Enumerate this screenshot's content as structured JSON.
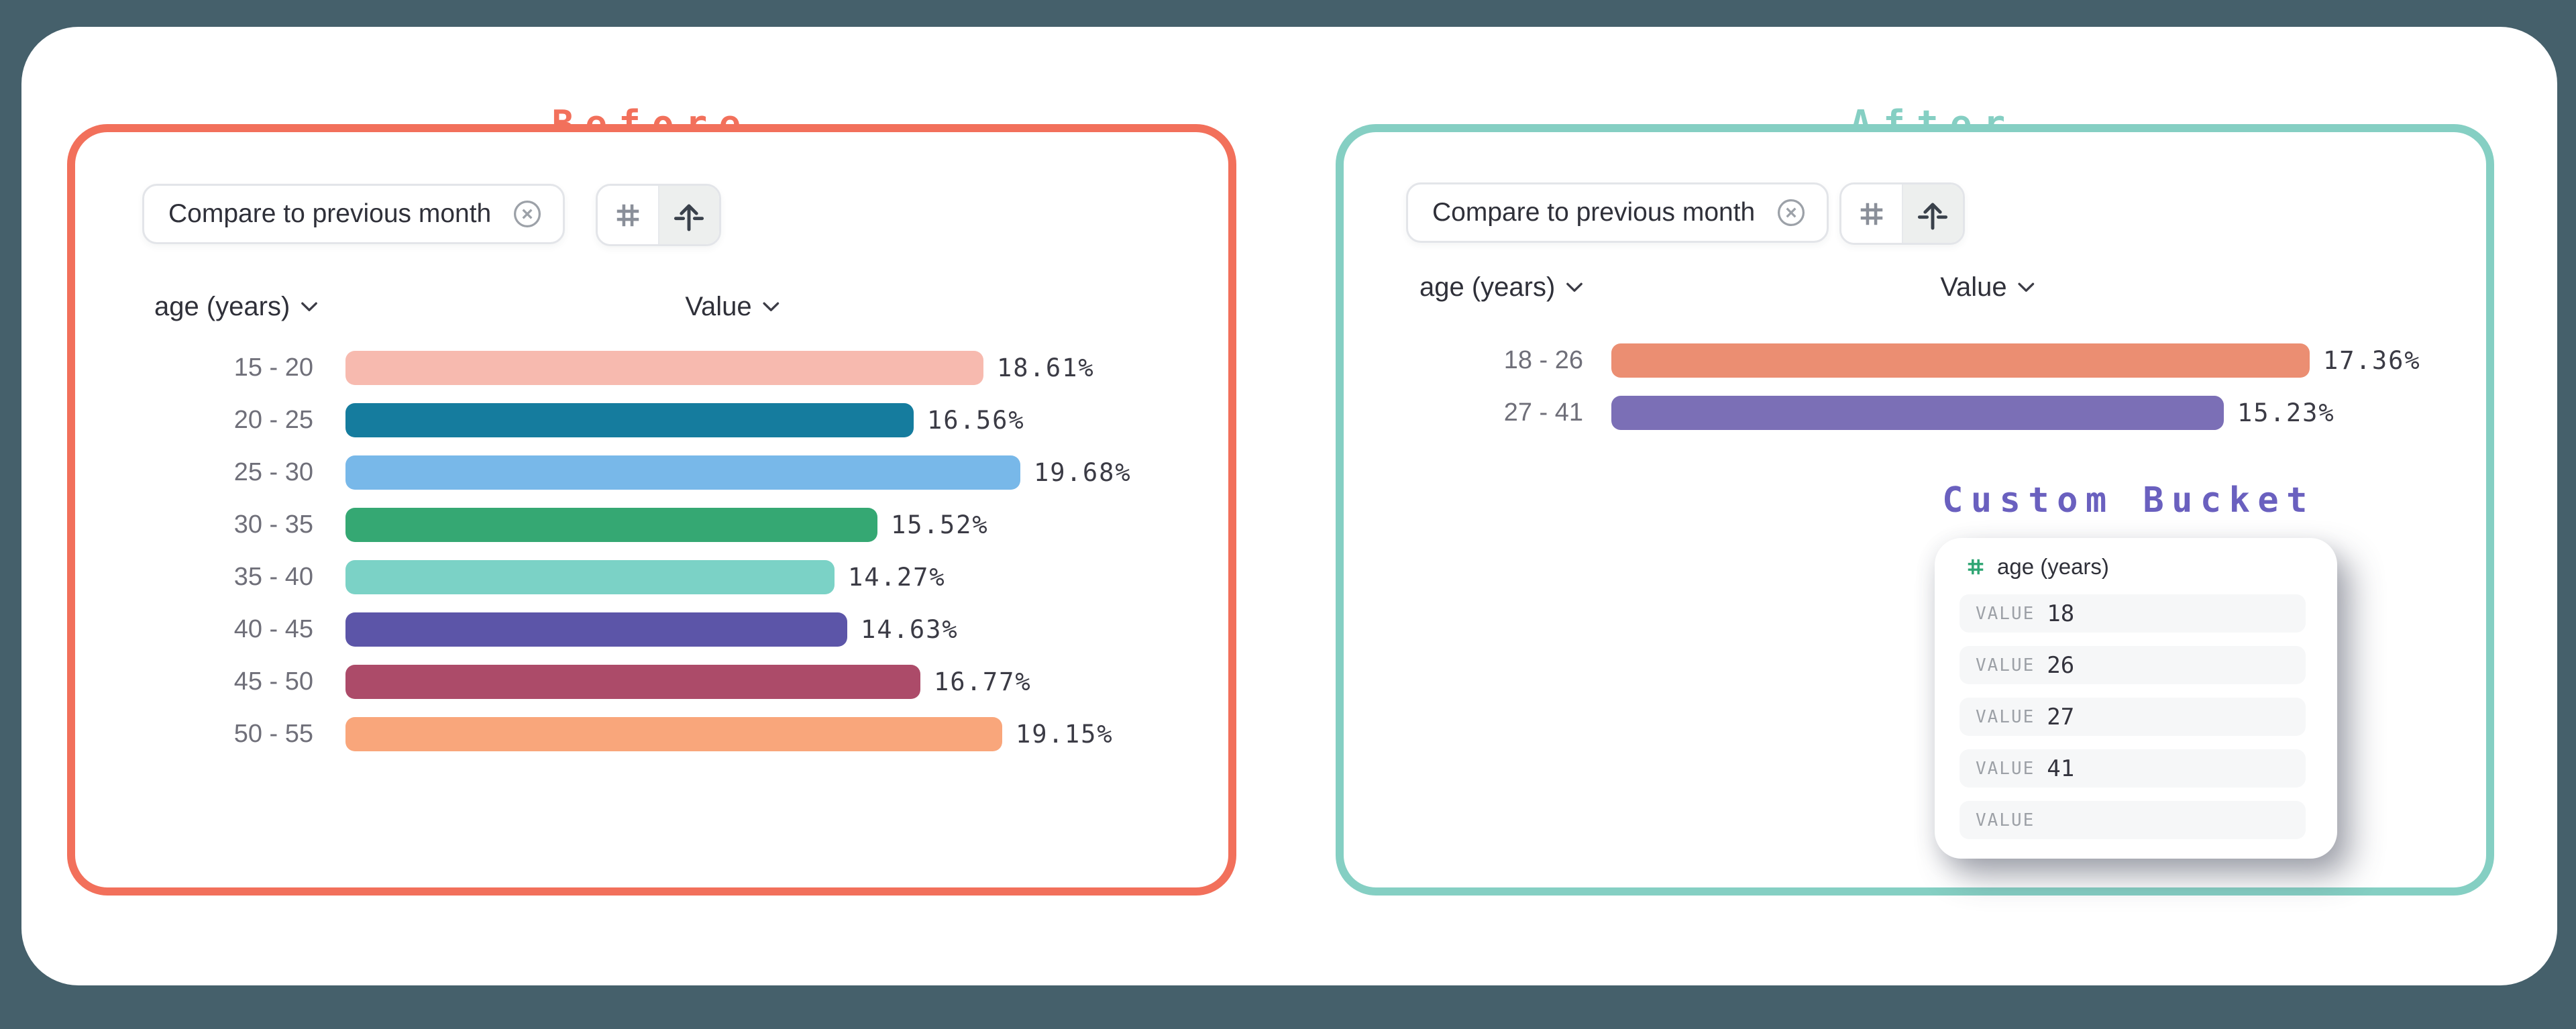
{
  "canvas": {
    "background": "#45606B"
  },
  "before": {
    "title": "Before",
    "accent": "#F2705B",
    "chip": {
      "label": "Compare to previous month",
      "close_icon": "x-circle"
    },
    "toolbar": {
      "buttons": [
        "hash",
        "axis-arrow"
      ],
      "active_button": "axis-arrow"
    },
    "columns": {
      "category": "age (years)",
      "value": "Value"
    },
    "rows": [
      {
        "label": "15 - 20",
        "value": 18.61,
        "value_label": "18.61%",
        "color": "#F7BAAF"
      },
      {
        "label": "20 - 25",
        "value": 16.56,
        "value_label": "16.56%",
        "color": "#157C9E"
      },
      {
        "label": "25 - 30",
        "value": 19.68,
        "value_label": "19.68%",
        "color": "#78B8E9"
      },
      {
        "label": "30 - 35",
        "value": 15.52,
        "value_label": "15.52%",
        "color": "#35A873"
      },
      {
        "label": "35 - 40",
        "value": 14.27,
        "value_label": "14.27%",
        "color": "#7BD2C6"
      },
      {
        "label": "40 - 45",
        "value": 14.63,
        "value_label": "14.63%",
        "color": "#5C55A8"
      },
      {
        "label": "45 - 50",
        "value": 16.77,
        "value_label": "16.77%",
        "color": "#AC4B69"
      },
      {
        "label": "50 - 55",
        "value": 19.15,
        "value_label": "19.15%",
        "color": "#F9A67B"
      }
    ]
  },
  "after": {
    "title": "After",
    "accent": "#85CFC3",
    "chip": {
      "label": "Compare to previous month",
      "close_icon": "x-circle"
    },
    "toolbar": {
      "buttons": [
        "hash",
        "axis-arrow"
      ],
      "active_button": "axis-arrow"
    },
    "columns": {
      "category": "age (years)",
      "value": "Value"
    },
    "rows": [
      {
        "label": "18 - 26",
        "value": 17.36,
        "value_label": "17.36%",
        "color": "#EB8E72"
      },
      {
        "label": "27 - 41",
        "value": 15.23,
        "value_label": "15.23%",
        "color": "#7B6FB6"
      }
    ],
    "custom_bucket": {
      "title": "Custom Bucket",
      "accent": "#6A60BF",
      "field": {
        "icon": "hash",
        "icon_color": "#2EA573",
        "label": "age (years)"
      },
      "rows": [
        {
          "label": "VALUE",
          "value": "18"
        },
        {
          "label": "VALUE",
          "value": "26"
        },
        {
          "label": "VALUE",
          "value": "27"
        },
        {
          "label": "VALUE",
          "value": "41"
        },
        {
          "label": "VALUE",
          "value": ""
        }
      ]
    }
  },
  "chart_data": [
    {
      "type": "bar",
      "orientation": "horizontal",
      "title": "Before",
      "categories": [
        "15 - 20",
        "20 - 25",
        "25 - 30",
        "30 - 35",
        "35 - 40",
        "40 - 45",
        "45 - 50",
        "50 - 55"
      ],
      "values": [
        18.61,
        16.56,
        19.68,
        15.52,
        14.27,
        14.63,
        16.77,
        19.15
      ],
      "unit": "%",
      "colors": [
        "#F7BAAF",
        "#157C9E",
        "#78B8E9",
        "#35A873",
        "#7BD2C6",
        "#5C55A8",
        "#AC4B69",
        "#F9A67B"
      ],
      "xlabel": "Value",
      "ylabel": "age (years)",
      "grid": false,
      "data_labels": true
    },
    {
      "type": "bar",
      "orientation": "horizontal",
      "title": "After",
      "categories": [
        "18 - 26",
        "27 - 41"
      ],
      "values": [
        17.36,
        15.23
      ],
      "unit": "%",
      "colors": [
        "#EB8E72",
        "#7B6FB6"
      ],
      "xlabel": "Value",
      "ylabel": "age (years)",
      "grid": false,
      "data_labels": true
    }
  ]
}
